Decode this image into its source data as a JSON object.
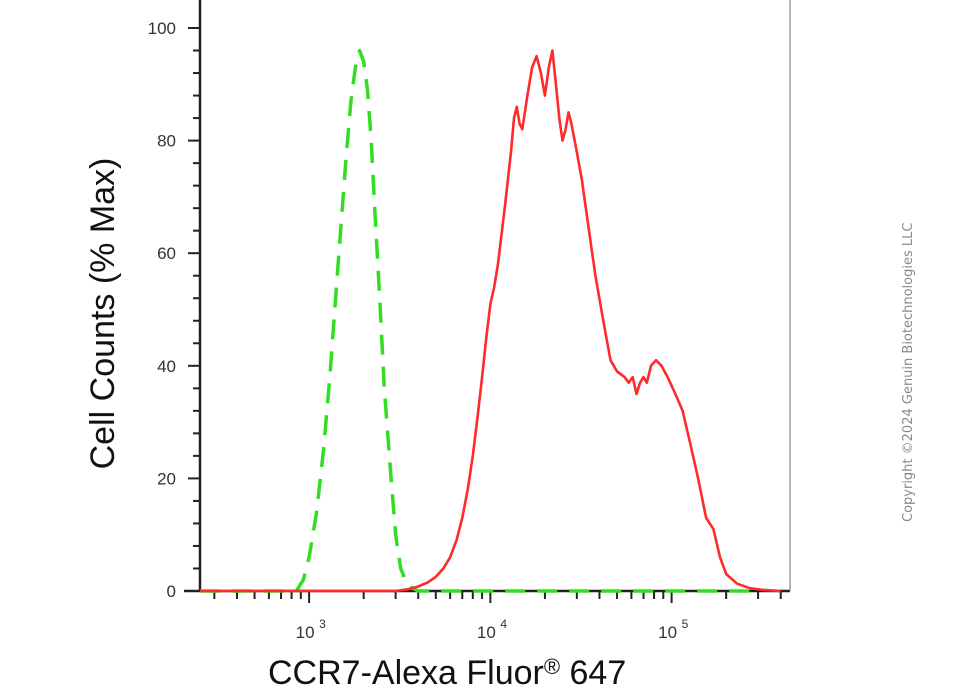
{
  "chart_data": {
    "type": "line",
    "xlabel": "CCR7-Alexa Fluor",
    "xlabel_superscript": "®",
    "xlabel_suffix": " 647",
    "ylabel": "Cell Counts (% Max)",
    "x_scale": "log",
    "xlim": [
      250,
      450000
    ],
    "ylim": [
      0,
      105
    ],
    "y_ticks": [
      0,
      20,
      40,
      60,
      80,
      100
    ],
    "x_ticks": [
      {
        "value": 1000,
        "base": "10",
        "exp": "3"
      },
      {
        "value": 10000,
        "base": "10",
        "exp": "4"
      },
      {
        "value": 100000,
        "base": "10",
        "exp": "5"
      }
    ],
    "grid": false,
    "series": [
      {
        "style": "dashed",
        "color": "#33dd22",
        "points": [
          [
            250,
            0
          ],
          [
            600,
            0
          ],
          [
            850,
            0
          ],
          [
            930,
            2
          ],
          [
            1000,
            6
          ],
          [
            1100,
            14
          ],
          [
            1200,
            25
          ],
          [
            1300,
            38
          ],
          [
            1400,
            52
          ],
          [
            1500,
            65
          ],
          [
            1600,
            77
          ],
          [
            1700,
            87
          ],
          [
            1800,
            93
          ],
          [
            1900,
            96
          ],
          [
            2000,
            94
          ],
          [
            2100,
            89
          ],
          [
            2200,
            80
          ],
          [
            2300,
            68
          ],
          [
            2450,
            52
          ],
          [
            2600,
            36
          ],
          [
            2800,
            22
          ],
          [
            3000,
            10
          ],
          [
            3200,
            4
          ],
          [
            3500,
            1
          ],
          [
            4000,
            0
          ],
          [
            10000,
            0
          ],
          [
            100000,
            0
          ],
          [
            300000,
            0
          ]
        ]
      },
      {
        "style": "solid",
        "color": "#ff2a2a",
        "points": [
          [
            250,
            0
          ],
          [
            2000,
            0
          ],
          [
            3000,
            0
          ],
          [
            3500,
            0.3
          ],
          [
            4000,
            0.8
          ],
          [
            4500,
            1.5
          ],
          [
            5000,
            2.5
          ],
          [
            5500,
            4
          ],
          [
            6000,
            6
          ],
          [
            6500,
            9
          ],
          [
            7000,
            13
          ],
          [
            7500,
            18
          ],
          [
            8000,
            24
          ],
          [
            8500,
            31
          ],
          [
            9000,
            38
          ],
          [
            9500,
            45
          ],
          [
            10000,
            51
          ],
          [
            10500,
            54
          ],
          [
            11000,
            58
          ],
          [
            12000,
            68
          ],
          [
            13000,
            78
          ],
          [
            13500,
            84
          ],
          [
            14000,
            86
          ],
          [
            14500,
            83
          ],
          [
            15000,
            82
          ],
          [
            16000,
            88
          ],
          [
            17000,
            93
          ],
          [
            18000,
            95
          ],
          [
            19000,
            92
          ],
          [
            20000,
            88
          ],
          [
            21000,
            93
          ],
          [
            22000,
            96
          ],
          [
            23000,
            90
          ],
          [
            24000,
            84
          ],
          [
            25000,
            80
          ],
          [
            26000,
            82
          ],
          [
            27000,
            85
          ],
          [
            28000,
            83
          ],
          [
            30000,
            78
          ],
          [
            32000,
            73
          ],
          [
            35000,
            64
          ],
          [
            38000,
            56
          ],
          [
            42000,
            48
          ],
          [
            46000,
            41
          ],
          [
            50000,
            39
          ],
          [
            55000,
            38
          ],
          [
            58000,
            37
          ],
          [
            61000,
            38
          ],
          [
            64000,
            35
          ],
          [
            67000,
            37
          ],
          [
            70000,
            38
          ],
          [
            73000,
            37
          ],
          [
            77000,
            40
          ],
          [
            82000,
            41
          ],
          [
            88000,
            40
          ],
          [
            95000,
            38
          ],
          [
            105000,
            35
          ],
          [
            115000,
            32
          ],
          [
            125000,
            27
          ],
          [
            140000,
            20
          ],
          [
            155000,
            13
          ],
          [
            170000,
            11
          ],
          [
            185000,
            6
          ],
          [
            200000,
            3
          ],
          [
            230000,
            1.3
          ],
          [
            270000,
            0.5
          ],
          [
            320000,
            0.2
          ],
          [
            400000,
            0
          ]
        ]
      }
    ]
  },
  "copyright": "Copyright ©2024 Genuin Biotechnologies LLC"
}
